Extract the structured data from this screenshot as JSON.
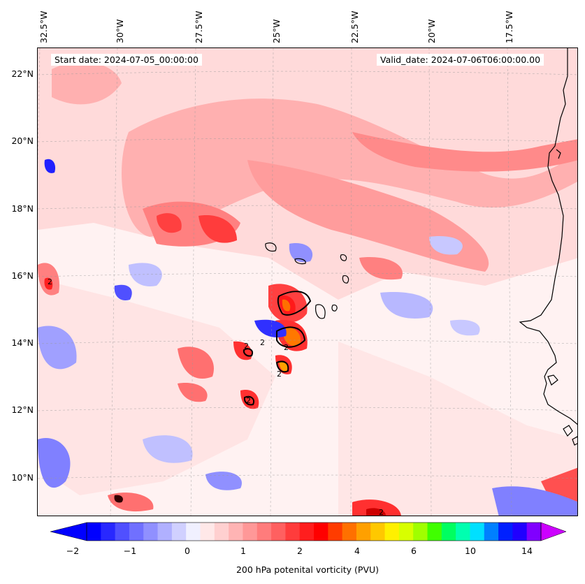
{
  "map": {
    "start_date": "Start date: 2024-07-05_00:00:00",
    "valid_date": "Valid_date: 2024-07-06T06:00:00.00",
    "lon_labels": [
      "32.5°W",
      "30°W",
      "27.5°W",
      "25°W",
      "22.5°W",
      "20°W",
      "17.5°W"
    ],
    "lat_labels": [
      "22°N",
      "20°N",
      "18°N",
      "16°N",
      "14°N",
      "12°N",
      "10°N"
    ],
    "contour_label": "2",
    "colors": {
      "ocean_bg": "#fff2f2",
      "pv_low_red": "#ffd0d0",
      "pv_mid_red": "#ff9a9a",
      "pv_high_red": "#ff5050",
      "pv_peak": "#ff0000",
      "pv_orange": "#ff8c00",
      "pv_neg_light": "#d8d8ff",
      "pv_neg_mid": "#8080ff",
      "pv_neg_dark": "#2020ff",
      "coastline": "#000000"
    }
  },
  "colorbar": {
    "title": "200 hPa potenital vorticity (PVU)",
    "tick_labels": [
      "−2",
      "−1",
      "0",
      "1",
      "2",
      "4",
      "6",
      "10",
      "14"
    ],
    "colors": [
      "#0000ff",
      "#2828ff",
      "#5050ff",
      "#7070ff",
      "#9090ff",
      "#b0b0ff",
      "#d0d0ff",
      "#f0f0ff",
      "#ffe8e8",
      "#ffd0d0",
      "#ffb4b4",
      "#ff9898",
      "#ff7c7c",
      "#ff6060",
      "#ff3c3c",
      "#ff1e1e",
      "#ff0000",
      "#ff3c00",
      "#ff7000",
      "#ffa000",
      "#ffc800",
      "#fff000",
      "#d8ff00",
      "#a0ff00",
      "#40ff00",
      "#00ff60",
      "#00ffb0",
      "#00e0ff",
      "#0080ff",
      "#0020ff",
      "#2000ff",
      "#8000ff"
    ]
  }
}
